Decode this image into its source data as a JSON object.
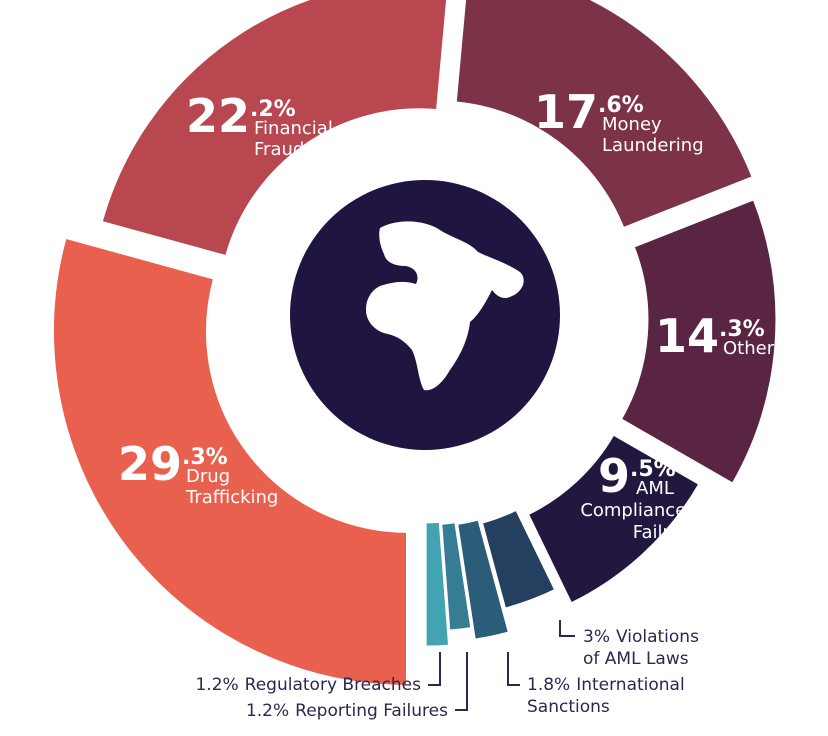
{
  "chart_data": {
    "type": "pie",
    "donut": true,
    "start_angle": 180,
    "direction": "clockwise",
    "categories": [
      "Drug Trafficking",
      "Financial Fraud",
      "Money Laundering",
      "Other",
      "AML Compliance Failure",
      "Violations of AML Laws",
      "International Sanctions",
      "Reporting Failures",
      "Regulatory Breaches"
    ],
    "values": [
      29.3,
      22.2,
      17.6,
      14.3,
      9.5,
      3,
      1.8,
      1.2,
      1.2
    ],
    "value_labels": [
      "29.3%",
      "22.2%",
      "17.6%",
      "14.3%",
      "9.5%",
      "3%",
      "1.8%",
      "1.2%",
      "1.2%"
    ],
    "colors": [
      "#e9604f",
      "#b9474f",
      "#7d3347",
      "#5a2443",
      "#22173f",
      "#243f60",
      "#2b5d78",
      "#367d93",
      "#42a3b3"
    ]
  }
}
